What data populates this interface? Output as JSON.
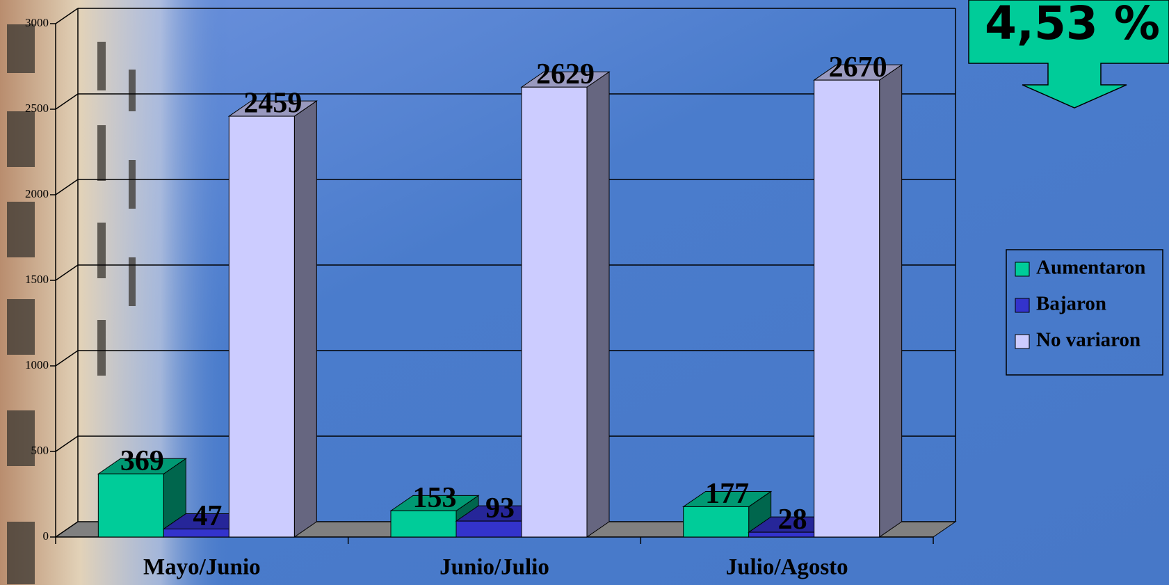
{
  "chart_data": {
    "type": "bar3d",
    "callout": "4,53 %",
    "categories": [
      "Mayo/Junio",
      "Junio/Julio",
      "Julio/Agosto"
    ],
    "series": [
      {
        "name": "Aumentaron",
        "color": "#00cc99",
        "values": [
          369,
          153,
          177
        ]
      },
      {
        "name": "Bajaron",
        "color": "#3333cc",
        "values": [
          47,
          93,
          28
        ]
      },
      {
        "name": "No variaron",
        "color": "#ccccff",
        "values": [
          2459,
          2629,
          2670
        ]
      }
    ],
    "ylim": [
      0,
      3000
    ],
    "yticks": [
      0,
      500,
      1000,
      1500,
      2000,
      2500,
      3000
    ],
    "grid": true,
    "legend": "right"
  }
}
